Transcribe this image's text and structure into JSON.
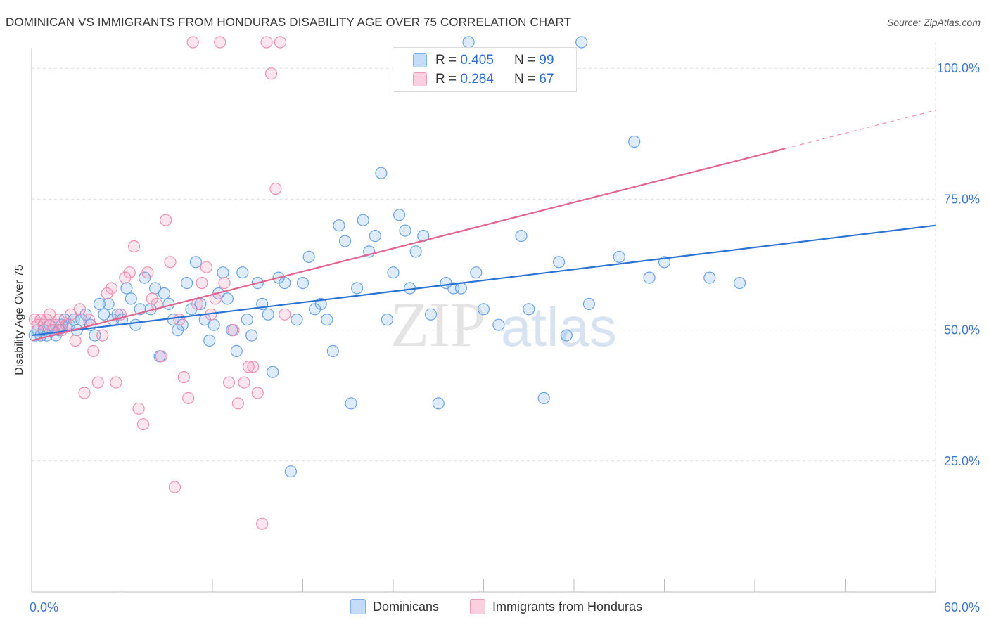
{
  "title": "DOMINICAN VS IMMIGRANTS FROM HONDURAS DISABILITY AGE OVER 75 CORRELATION CHART",
  "source": "Source: ZipAtlas.com",
  "watermark": {
    "zip": "ZIP",
    "atlas": "atlas"
  },
  "legend": {
    "rows": [
      {
        "r_label": "R = ",
        "r_value": "0.405",
        "n_label": "N = ",
        "n_value": "99",
        "color": "#7fb0ea",
        "fill": "#c5dcf6"
      },
      {
        "r_label": "R = ",
        "r_value": "0.284",
        "n_label": "N = ",
        "n_value": "67",
        "color": "#f09ab8",
        "fill": "#fbd0de"
      }
    ]
  },
  "chart_data": {
    "type": "scatter",
    "title": "DOMINICAN VS IMMIGRANTS FROM HONDURAS DISABILITY AGE OVER 75 CORRELATION CHART",
    "xlabel": "",
    "ylabel": "Disability Age Over 75",
    "xlim": [
      0,
      60
    ],
    "ylim": [
      0,
      105
    ],
    "x_tick_labels": [
      "0.0%",
      "60.0%"
    ],
    "y_ticks": [
      25,
      50,
      75,
      100
    ],
    "y_tick_labels": [
      "25.0%",
      "50.0%",
      "75.0%",
      "100.0%"
    ],
    "grid": true,
    "legend_position": "top-center",
    "series": [
      {
        "name": "Dominicans",
        "color": "#6aa3e6",
        "line_color": "#2a72d4",
        "trend": {
          "x": [
            0,
            60
          ],
          "y": [
            49,
            70
          ]
        },
        "points": [
          [
            0.2,
            49
          ],
          [
            0.4,
            50
          ],
          [
            0.6,
            49
          ],
          [
            0.8,
            50
          ],
          [
            1.0,
            49
          ],
          [
            1.2,
            51
          ],
          [
            1.4,
            50
          ],
          [
            1.6,
            49
          ],
          [
            1.8,
            50
          ],
          [
            2.0,
            51
          ],
          [
            2.2,
            52
          ],
          [
            2.5,
            51
          ],
          [
            2.8,
            52
          ],
          [
            3.0,
            50
          ],
          [
            3.3,
            52
          ],
          [
            3.6,
            53
          ],
          [
            3.9,
            51
          ],
          [
            4.2,
            49
          ],
          [
            4.5,
            55
          ],
          [
            4.8,
            53
          ],
          [
            5.1,
            55
          ],
          [
            5.4,
            52
          ],
          [
            5.7,
            53
          ],
          [
            6.0,
            52
          ],
          [
            6.3,
            58
          ],
          [
            6.6,
            56
          ],
          [
            6.9,
            51
          ],
          [
            7.2,
            54
          ],
          [
            7.5,
            60
          ],
          [
            7.9,
            54
          ],
          [
            8.2,
            58
          ],
          [
            8.5,
            45
          ],
          [
            8.8,
            57
          ],
          [
            9.1,
            55
          ],
          [
            9.4,
            52
          ],
          [
            9.7,
            50
          ],
          [
            10.0,
            51
          ],
          [
            10.3,
            59
          ],
          [
            10.6,
            54
          ],
          [
            10.9,
            63
          ],
          [
            11.2,
            55
          ],
          [
            11.5,
            52
          ],
          [
            11.8,
            48
          ],
          [
            12.1,
            51
          ],
          [
            12.4,
            57
          ],
          [
            12.7,
            61
          ],
          [
            13.0,
            56
          ],
          [
            13.3,
            50
          ],
          [
            13.6,
            46
          ],
          [
            14.0,
            61
          ],
          [
            14.3,
            52
          ],
          [
            14.6,
            49
          ],
          [
            15.0,
            59
          ],
          [
            15.3,
            55
          ],
          [
            15.7,
            53
          ],
          [
            16.0,
            42
          ],
          [
            16.4,
            60
          ],
          [
            16.8,
            59
          ],
          [
            17.2,
            23
          ],
          [
            17.6,
            52
          ],
          [
            18.0,
            59
          ],
          [
            18.4,
            64
          ],
          [
            18.8,
            54
          ],
          [
            19.2,
            55
          ],
          [
            19.6,
            52
          ],
          [
            20.0,
            46
          ],
          [
            20.4,
            70
          ],
          [
            20.8,
            67
          ],
          [
            21.2,
            36
          ],
          [
            21.6,
            58
          ],
          [
            22.0,
            71
          ],
          [
            22.4,
            65
          ],
          [
            22.8,
            68
          ],
          [
            23.2,
            80
          ],
          [
            23.6,
            52
          ],
          [
            24.0,
            61
          ],
          [
            24.4,
            72
          ],
          [
            24.8,
            69
          ],
          [
            25.1,
            58
          ],
          [
            25.5,
            65
          ],
          [
            26.0,
            68
          ],
          [
            26.5,
            53
          ],
          [
            27.0,
            36
          ],
          [
            27.5,
            59
          ],
          [
            28.0,
            58
          ],
          [
            28.5,
            58
          ],
          [
            29.0,
            105
          ],
          [
            29.5,
            61
          ],
          [
            30.0,
            54
          ],
          [
            31.0,
            51
          ],
          [
            32.5,
            68
          ],
          [
            33.0,
            54
          ],
          [
            34.0,
            37
          ],
          [
            35.0,
            63
          ],
          [
            35.5,
            49
          ],
          [
            36.5,
            105
          ],
          [
            37.0,
            55
          ],
          [
            39.0,
            64
          ],
          [
            40.0,
            86
          ],
          [
            41.0,
            60
          ],
          [
            42.0,
            63
          ],
          [
            45.0,
            60
          ],
          [
            47.0,
            59
          ]
        ]
      },
      {
        "name": "Immigrants from Honduras",
        "color": "#f08fb0",
        "line_color": "#e2638f",
        "trend": {
          "x": [
            0,
            60
          ],
          "y": [
            48,
            92
          ]
        },
        "trend_solid_until": 50,
        "points": [
          [
            0.2,
            52
          ],
          [
            0.4,
            51
          ],
          [
            0.6,
            52
          ],
          [
            0.8,
            51
          ],
          [
            1.0,
            52
          ],
          [
            1.2,
            53
          ],
          [
            1.4,
            50
          ],
          [
            1.6,
            51
          ],
          [
            1.8,
            52
          ],
          [
            2.0,
            50
          ],
          [
            2.3,
            51
          ],
          [
            2.6,
            53
          ],
          [
            2.9,
            48
          ],
          [
            3.2,
            54
          ],
          [
            3.5,
            38
          ],
          [
            3.8,
            52
          ],
          [
            4.1,
            46
          ],
          [
            4.4,
            40
          ],
          [
            4.7,
            49
          ],
          [
            5.0,
            57
          ],
          [
            5.3,
            58
          ],
          [
            5.6,
            40
          ],
          [
            5.9,
            53
          ],
          [
            6.2,
            60
          ],
          [
            6.5,
            61
          ],
          [
            6.8,
            66
          ],
          [
            7.1,
            35
          ],
          [
            7.4,
            32
          ],
          [
            7.7,
            61
          ],
          [
            8.0,
            56
          ],
          [
            8.3,
            55
          ],
          [
            8.6,
            45
          ],
          [
            8.9,
            71
          ],
          [
            9.2,
            63
          ],
          [
            9.5,
            20
          ],
          [
            9.8,
            52
          ],
          [
            10.1,
            41
          ],
          [
            10.4,
            37
          ],
          [
            10.7,
            105
          ],
          [
            11.0,
            55
          ],
          [
            11.3,
            59
          ],
          [
            11.6,
            62
          ],
          [
            11.9,
            53
          ],
          [
            12.2,
            56
          ],
          [
            12.5,
            105
          ],
          [
            12.8,
            59
          ],
          [
            13.1,
            40
          ],
          [
            13.4,
            50
          ],
          [
            13.7,
            36
          ],
          [
            14.1,
            40
          ],
          [
            14.4,
            43
          ],
          [
            14.7,
            43
          ],
          [
            15.0,
            38
          ],
          [
            15.3,
            13
          ],
          [
            15.6,
            105
          ],
          [
            15.9,
            99
          ],
          [
            16.2,
            77
          ],
          [
            16.5,
            105
          ],
          [
            16.8,
            53
          ]
        ]
      }
    ]
  }
}
